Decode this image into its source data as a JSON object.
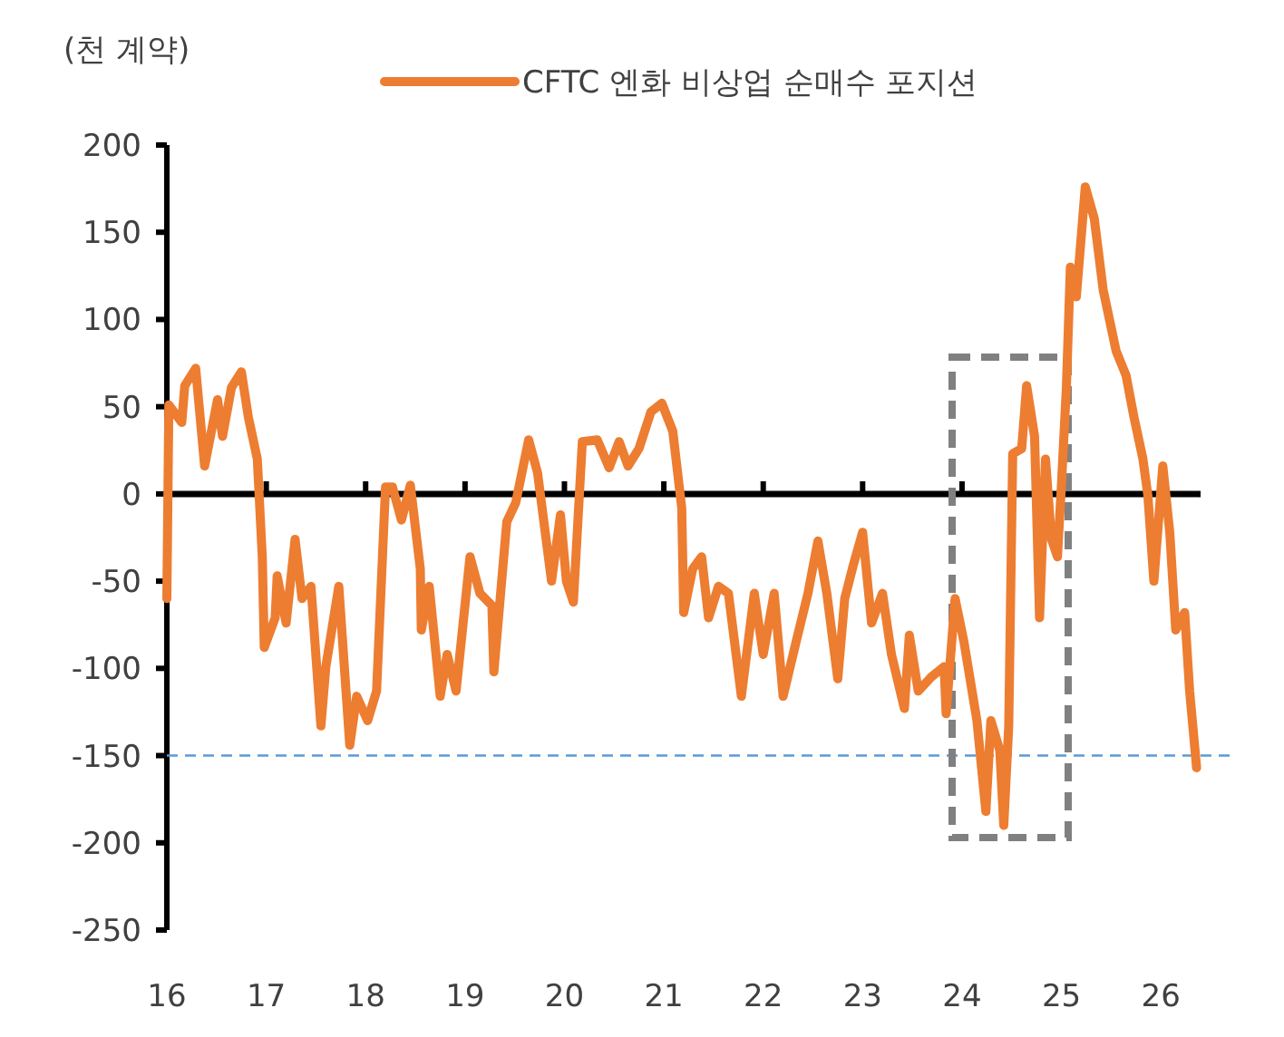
{
  "chart_data": {
    "type": "line",
    "ylabel": "(천 계약)",
    "legend": "top",
    "marker": "none",
    "line_style": "solid",
    "xlim": [
      16,
      26.4
    ],
    "xticks": [
      16,
      17,
      18,
      19,
      20,
      21,
      22,
      23,
      24,
      25,
      26
    ],
    "ylim": [
      -250,
      200
    ],
    "yticks": [
      -250,
      -200,
      -150,
      -100,
      -50,
      0,
      50,
      100,
      150,
      200
    ],
    "ref_lines": [
      {
        "axis": "y",
        "value": -150,
        "color": "#5b9bd5",
        "line_style": "dashed"
      }
    ],
    "series": [
      {
        "name": "CFTC 엔화 비상업 순매수 포지션",
        "color": "#ed7d31",
        "x": [
          16.0,
          16.02,
          16.15,
          16.18,
          16.29,
          16.38,
          16.51,
          16.56,
          16.65,
          16.75,
          16.82,
          16.91,
          16.96,
          16.98,
          17.09,
          17.11,
          17.2,
          17.29,
          17.36,
          17.45,
          17.55,
          17.6,
          17.73,
          17.84,
          17.91,
          18.02,
          18.11,
          18.2,
          18.27,
          18.36,
          18.45,
          18.55,
          18.56,
          18.64,
          18.75,
          18.82,
          18.91,
          19.05,
          19.15,
          19.27,
          19.29,
          19.42,
          19.51,
          19.64,
          19.73,
          19.87,
          19.96,
          20.02,
          20.09,
          20.18,
          20.33,
          20.45,
          20.55,
          20.64,
          20.75,
          20.87,
          20.98,
          21.09,
          21.18,
          21.2,
          21.29,
          21.38,
          21.45,
          21.55,
          21.65,
          21.78,
          21.91,
          22.0,
          22.11,
          22.2,
          22.33,
          22.45,
          22.55,
          22.64,
          22.75,
          22.82,
          22.91,
          23.0,
          23.09,
          23.2,
          23.29,
          23.42,
          23.47,
          23.56,
          23.69,
          23.82,
          23.84,
          23.93,
          24.02,
          24.15,
          24.24,
          24.29,
          24.38,
          24.42,
          24.47,
          24.51,
          24.6,
          24.65,
          24.73,
          24.78,
          24.84,
          24.9,
          24.96,
          25.0,
          25.05,
          25.09,
          25.15,
          25.24,
          25.33,
          25.42,
          25.55,
          25.65,
          25.73,
          25.82,
          25.87,
          25.93,
          26.02,
          26.09,
          26.15,
          26.24,
          26.29,
          26.36
        ],
        "values": [
          -60,
          51,
          41,
          62,
          72,
          16,
          54,
          33,
          61,
          70,
          44,
          20,
          -36,
          -88,
          -71,
          -47,
          -74,
          -26,
          -60,
          -53,
          -133,
          -99,
          -53,
          -144,
          -116,
          -130,
          -113,
          4,
          4,
          -15,
          5,
          -43,
          -78,
          -53,
          -116,
          -92,
          -113,
          -36,
          -57,
          -64,
          -102,
          -16,
          -5,
          31,
          12,
          -50,
          -12,
          -50,
          -62,
          30,
          31,
          15,
          30,
          16,
          26,
          47,
          52,
          36,
          -8,
          -68,
          -43,
          -36,
          -71,
          -53,
          -57,
          -116,
          -57,
          -92,
          -57,
          -116,
          -85,
          -57,
          -27,
          -57,
          -106,
          -60,
          -40,
          -22,
          -74,
          -57,
          -92,
          -123,
          -81,
          -113,
          -105,
          -99,
          -126,
          -60,
          -85,
          -130,
          -182,
          -130,
          -147,
          -190,
          -133,
          23,
          26,
          62,
          33,
          -71,
          20,
          -26,
          -36,
          5,
          61,
          130,
          113,
          176,
          158,
          117,
          82,
          68,
          44,
          20,
          -1,
          -50,
          16,
          -22,
          -78,
          -68,
          -113,
          -157
        ]
      }
    ]
  }
}
